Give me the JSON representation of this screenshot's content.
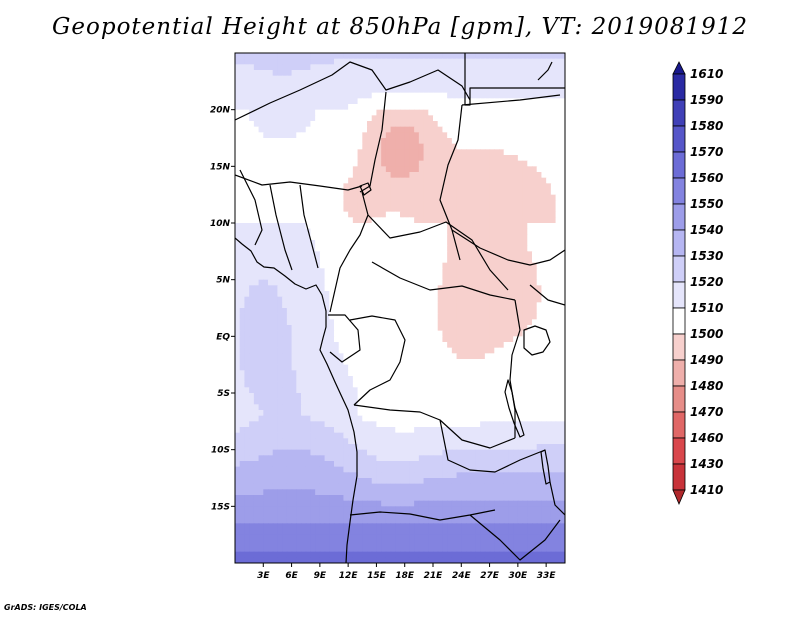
{
  "title": "Geopotential Height at 850hPa [gpm], VT: 2019081912",
  "credit": "GrADS: IGES/COLA",
  "chart_data": {
    "type": "heatmap",
    "title": "Geopotential Height at 850hPa [gpm], VT: 2019081912",
    "variable": "Geopotential Height",
    "level": "850hPa",
    "units": "gpm",
    "valid_time": "2019081912",
    "x_axis": {
      "range": [
        0,
        35
      ],
      "ticks": [
        3,
        6,
        9,
        12,
        15,
        18,
        21,
        24,
        27,
        30,
        33
      ],
      "tick_labels": [
        "3E",
        "6E",
        "9E",
        "12E",
        "15E",
        "18E",
        "21E",
        "24E",
        "27E",
        "30E",
        "33E"
      ]
    },
    "y_axis": {
      "range": [
        -20,
        25
      ],
      "ticks": [
        20,
        15,
        10,
        5,
        0,
        -5,
        -10,
        -15
      ],
      "tick_labels": [
        "20N",
        "15N",
        "10N",
        "5N",
        "EQ",
        "5S",
        "10S",
        "15S"
      ]
    },
    "colorbar": {
      "levels": [
        1410,
        1430,
        1460,
        1470,
        1480,
        1490,
        1500,
        1510,
        1520,
        1530,
        1540,
        1550,
        1560,
        1570,
        1580,
        1590,
        1610
      ],
      "colors": [
        "#b0282c",
        "#c8333a",
        "#d9474c",
        "#e06766",
        "#e68d88",
        "#efafab",
        "#f7d0cd",
        "#ffffff",
        "#e5e5fb",
        "#cfcff8",
        "#b6b6f2",
        "#9d9de9",
        "#8383e0",
        "#6c6cd6",
        "#5656c9",
        "#4040b7",
        "#2a2aa3",
        "#19198c"
      ],
      "extend": "both"
    },
    "field_summary": "Values near 1480-1500 gpm (pink) over the Sahel and east-central Africa (min about 1480 near 18N,17E); 1510 (white) band through central Africa; values rise southward to about 1560-1570 (blue) over southern Africa near 20S."
  }
}
